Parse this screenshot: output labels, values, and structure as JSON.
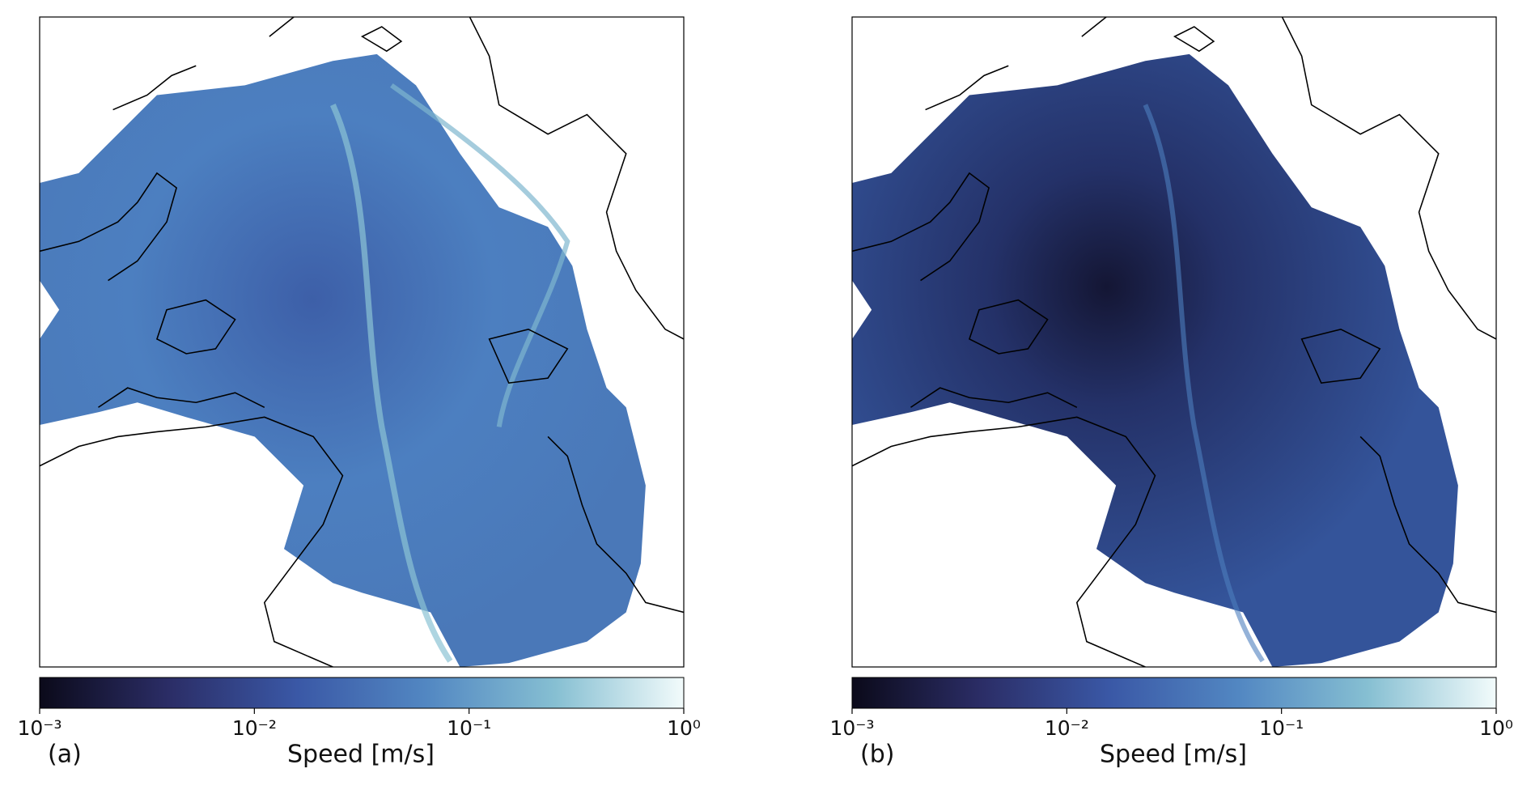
{
  "chart_data": [
    {
      "type": "colorbar",
      "panel_label": "(a)",
      "xlabel": "Speed [m/s]",
      "log_x": true,
      "xlim": [
        0.001,
        1
      ],
      "xticks": [
        {
          "value": 0.001,
          "label": "10⁻³"
        },
        {
          "value": 0.01,
          "label": "10⁻²"
        },
        {
          "value": 0.1,
          "label": "10⁻¹"
        },
        {
          "value": 1,
          "label": "10⁰"
        }
      ],
      "colormap": [
        "#0b0a1a",
        "#2b2d66",
        "#3a58a6",
        "#5287c2",
        "#86bfd2",
        "#f2fbfb"
      ]
    },
    {
      "type": "colorbar",
      "panel_label": "(b)",
      "xlabel": "Speed [m/s]",
      "log_x": true,
      "xlim": [
        0.001,
        1
      ],
      "xticks": [
        {
          "value": 0.001,
          "label": "10⁻³"
        },
        {
          "value": 0.01,
          "label": "10⁻²"
        },
        {
          "value": 0.1,
          "label": "10⁻¹"
        },
        {
          "value": 1,
          "label": "10⁰"
        }
      ],
      "colormap": [
        "#0b0a1a",
        "#2b2d66",
        "#3a58a6",
        "#5287c2",
        "#86bfd2",
        "#f2fbfb"
      ]
    }
  ]
}
